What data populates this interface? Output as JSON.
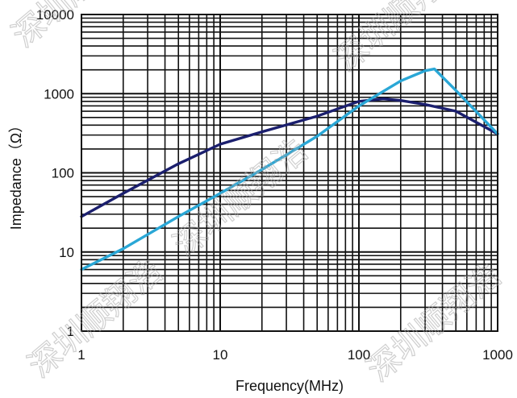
{
  "chart_data": {
    "type": "line",
    "xlabel": "Frequency(MHz)",
    "ylabel": "Impedance（Ω）",
    "x_scale": "log",
    "y_scale": "log",
    "xlim": [
      1,
      1000
    ],
    "ylim": [
      1,
      10000
    ],
    "x_ticks": [
      1,
      10,
      100,
      1000
    ],
    "x_tick_labels": [
      "1",
      "10",
      "100",
      "1000"
    ],
    "y_ticks": [
      1,
      10,
      100,
      1000,
      10000
    ],
    "y_tick_labels": [
      "1",
      "10",
      "100",
      "1000",
      "10000"
    ],
    "grid": true,
    "legend": "none",
    "series": [
      {
        "color": "#1b1f6e",
        "x": [
          1,
          2,
          5,
          10,
          20,
          50,
          100,
          150,
          200,
          300,
          500,
          1000
        ],
        "y": [
          28,
          55,
          130,
          230,
          330,
          520,
          800,
          860,
          820,
          730,
          600,
          310
        ]
      },
      {
        "color": "#2aa7d6",
        "x": [
          1,
          2,
          5,
          10,
          20,
          50,
          100,
          200,
          300,
          350,
          500,
          1000
        ],
        "y": [
          6,
          11,
          28,
          55,
          110,
          290,
          700,
          1450,
          1950,
          2050,
          1100,
          310
        ]
      }
    ],
    "watermark": "深圳顺翔浩"
  }
}
